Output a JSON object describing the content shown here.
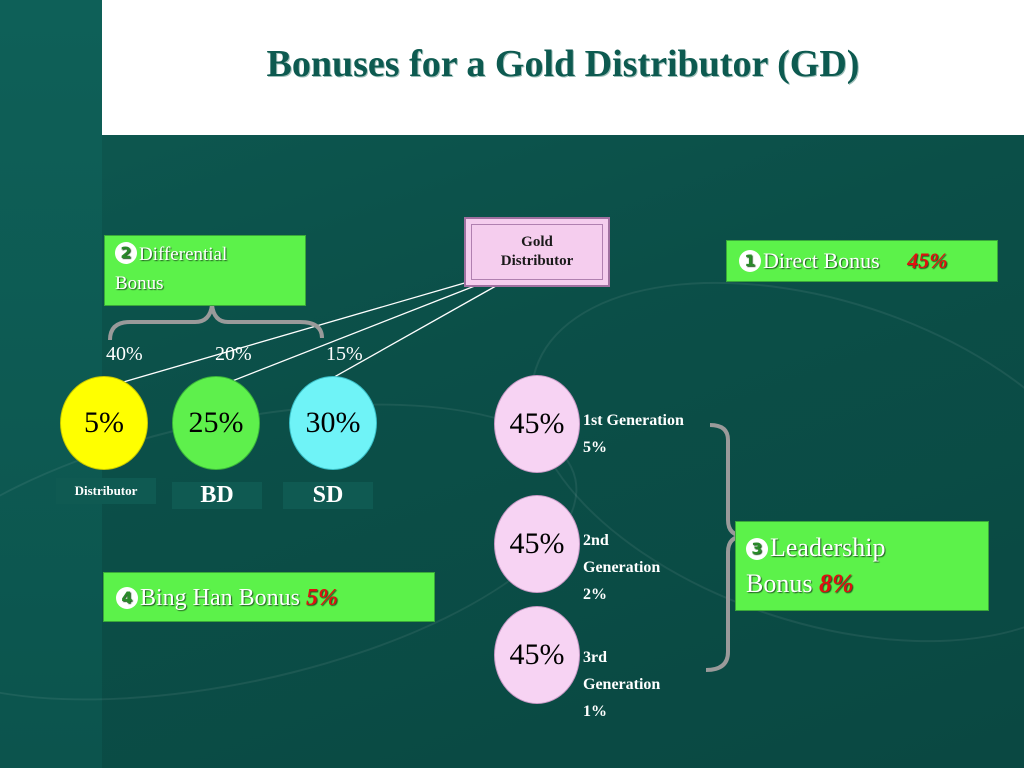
{
  "title": "Bonuses for a Gold Distributor (GD)",
  "gold_distributor": "Gold\nDistributor",
  "differential": {
    "icon": "2",
    "line1": "Differential",
    "line2": "Bonus"
  },
  "direct": {
    "icon": "1",
    "label": "Direct Bonus",
    "value": "45%"
  },
  "bing_han": {
    "icon": "4",
    "label": "Bing Han Bonus",
    "value": "5%"
  },
  "leadership": {
    "icon": "3",
    "line1": "Leadership",
    "line2": "Bonus",
    "value": "8%"
  },
  "diff_rates": [
    "40%",
    "20%",
    "15%"
  ],
  "left_circles": [
    {
      "value": "5%",
      "color": "#ffff00",
      "label": "Distributor"
    },
    {
      "value": "25%",
      "color": "#5ef04c",
      "label": "BD"
    },
    {
      "value": "30%",
      "color": "#6ff3f7",
      "label": "SD"
    }
  ],
  "generations": [
    {
      "value": "45%",
      "lines": [
        "1st Generation",
        "5%"
      ]
    },
    {
      "value": "45%",
      "lines": [
        "2nd",
        "Generation",
        "2%"
      ]
    },
    {
      "value": "45%",
      "lines": [
        "3rd",
        "Generation",
        "1%"
      ]
    }
  ],
  "colors": {
    "gen_circle": "#f7d3f3",
    "green_box": "#5cf24a",
    "highlight_red": "#e01010"
  }
}
